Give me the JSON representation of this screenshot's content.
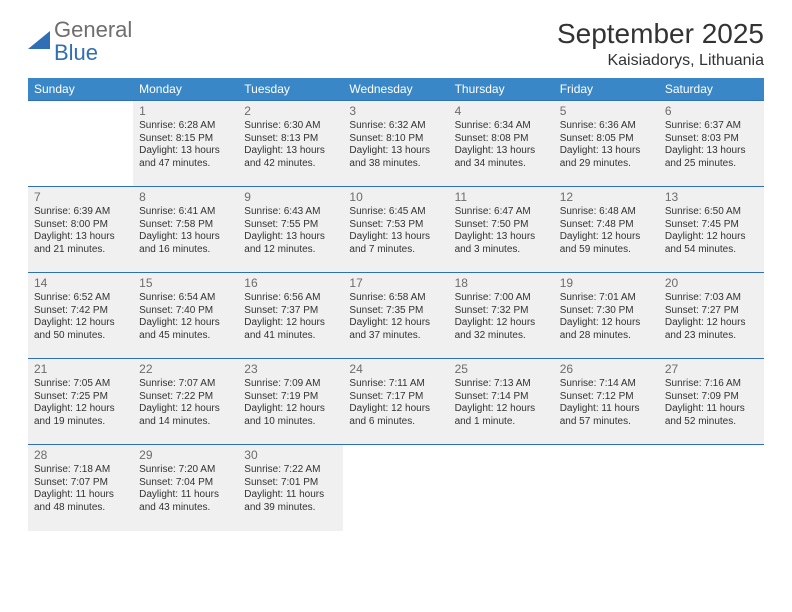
{
  "brand": {
    "line1": "General",
    "line2": "Blue"
  },
  "title": "September 2025",
  "location": "Kaisiadorys, Lithuania",
  "colors": {
    "header_bg": "#3a87c7",
    "header_text": "#ffffff",
    "border": "#2f6fb3",
    "shade_bg": "#f0f0f0",
    "text": "#333333",
    "daynum": "#6c6c6c",
    "brand_gray": "#6e6e6e",
    "brand_blue": "#2f6fb3"
  },
  "weekdays": [
    "Sunday",
    "Monday",
    "Tuesday",
    "Wednesday",
    "Thursday",
    "Friday",
    "Saturday"
  ],
  "weeks": [
    [
      null,
      {
        "n": "1",
        "sr": "Sunrise: 6:28 AM",
        "ss": "Sunset: 8:15 PM",
        "d1": "Daylight: 13 hours",
        "d2": "and 47 minutes."
      },
      {
        "n": "2",
        "sr": "Sunrise: 6:30 AM",
        "ss": "Sunset: 8:13 PM",
        "d1": "Daylight: 13 hours",
        "d2": "and 42 minutes."
      },
      {
        "n": "3",
        "sr": "Sunrise: 6:32 AM",
        "ss": "Sunset: 8:10 PM",
        "d1": "Daylight: 13 hours",
        "d2": "and 38 minutes."
      },
      {
        "n": "4",
        "sr": "Sunrise: 6:34 AM",
        "ss": "Sunset: 8:08 PM",
        "d1": "Daylight: 13 hours",
        "d2": "and 34 minutes."
      },
      {
        "n": "5",
        "sr": "Sunrise: 6:36 AM",
        "ss": "Sunset: 8:05 PM",
        "d1": "Daylight: 13 hours",
        "d2": "and 29 minutes."
      },
      {
        "n": "6",
        "sr": "Sunrise: 6:37 AM",
        "ss": "Sunset: 8:03 PM",
        "d1": "Daylight: 13 hours",
        "d2": "and 25 minutes."
      }
    ],
    [
      {
        "n": "7",
        "sr": "Sunrise: 6:39 AM",
        "ss": "Sunset: 8:00 PM",
        "d1": "Daylight: 13 hours",
        "d2": "and 21 minutes."
      },
      {
        "n": "8",
        "sr": "Sunrise: 6:41 AM",
        "ss": "Sunset: 7:58 PM",
        "d1": "Daylight: 13 hours",
        "d2": "and 16 minutes."
      },
      {
        "n": "9",
        "sr": "Sunrise: 6:43 AM",
        "ss": "Sunset: 7:55 PM",
        "d1": "Daylight: 13 hours",
        "d2": "and 12 minutes."
      },
      {
        "n": "10",
        "sr": "Sunrise: 6:45 AM",
        "ss": "Sunset: 7:53 PM",
        "d1": "Daylight: 13 hours",
        "d2": "and 7 minutes."
      },
      {
        "n": "11",
        "sr": "Sunrise: 6:47 AM",
        "ss": "Sunset: 7:50 PM",
        "d1": "Daylight: 13 hours",
        "d2": "and 3 minutes."
      },
      {
        "n": "12",
        "sr": "Sunrise: 6:48 AM",
        "ss": "Sunset: 7:48 PM",
        "d1": "Daylight: 12 hours",
        "d2": "and 59 minutes."
      },
      {
        "n": "13",
        "sr": "Sunrise: 6:50 AM",
        "ss": "Sunset: 7:45 PM",
        "d1": "Daylight: 12 hours",
        "d2": "and 54 minutes."
      }
    ],
    [
      {
        "n": "14",
        "sr": "Sunrise: 6:52 AM",
        "ss": "Sunset: 7:42 PM",
        "d1": "Daylight: 12 hours",
        "d2": "and 50 minutes."
      },
      {
        "n": "15",
        "sr": "Sunrise: 6:54 AM",
        "ss": "Sunset: 7:40 PM",
        "d1": "Daylight: 12 hours",
        "d2": "and 45 minutes."
      },
      {
        "n": "16",
        "sr": "Sunrise: 6:56 AM",
        "ss": "Sunset: 7:37 PM",
        "d1": "Daylight: 12 hours",
        "d2": "and 41 minutes."
      },
      {
        "n": "17",
        "sr": "Sunrise: 6:58 AM",
        "ss": "Sunset: 7:35 PM",
        "d1": "Daylight: 12 hours",
        "d2": "and 37 minutes."
      },
      {
        "n": "18",
        "sr": "Sunrise: 7:00 AM",
        "ss": "Sunset: 7:32 PM",
        "d1": "Daylight: 12 hours",
        "d2": "and 32 minutes."
      },
      {
        "n": "19",
        "sr": "Sunrise: 7:01 AM",
        "ss": "Sunset: 7:30 PM",
        "d1": "Daylight: 12 hours",
        "d2": "and 28 minutes."
      },
      {
        "n": "20",
        "sr": "Sunrise: 7:03 AM",
        "ss": "Sunset: 7:27 PM",
        "d1": "Daylight: 12 hours",
        "d2": "and 23 minutes."
      }
    ],
    [
      {
        "n": "21",
        "sr": "Sunrise: 7:05 AM",
        "ss": "Sunset: 7:25 PM",
        "d1": "Daylight: 12 hours",
        "d2": "and 19 minutes."
      },
      {
        "n": "22",
        "sr": "Sunrise: 7:07 AM",
        "ss": "Sunset: 7:22 PM",
        "d1": "Daylight: 12 hours",
        "d2": "and 14 minutes."
      },
      {
        "n": "23",
        "sr": "Sunrise: 7:09 AM",
        "ss": "Sunset: 7:19 PM",
        "d1": "Daylight: 12 hours",
        "d2": "and 10 minutes."
      },
      {
        "n": "24",
        "sr": "Sunrise: 7:11 AM",
        "ss": "Sunset: 7:17 PM",
        "d1": "Daylight: 12 hours",
        "d2": "and 6 minutes."
      },
      {
        "n": "25",
        "sr": "Sunrise: 7:13 AM",
        "ss": "Sunset: 7:14 PM",
        "d1": "Daylight: 12 hours",
        "d2": "and 1 minute."
      },
      {
        "n": "26",
        "sr": "Sunrise: 7:14 AM",
        "ss": "Sunset: 7:12 PM",
        "d1": "Daylight: 11 hours",
        "d2": "and 57 minutes."
      },
      {
        "n": "27",
        "sr": "Sunrise: 7:16 AM",
        "ss": "Sunset: 7:09 PM",
        "d1": "Daylight: 11 hours",
        "d2": "and 52 minutes."
      }
    ],
    [
      {
        "n": "28",
        "sr": "Sunrise: 7:18 AM",
        "ss": "Sunset: 7:07 PM",
        "d1": "Daylight: 11 hours",
        "d2": "and 48 minutes."
      },
      {
        "n": "29",
        "sr": "Sunrise: 7:20 AM",
        "ss": "Sunset: 7:04 PM",
        "d1": "Daylight: 11 hours",
        "d2": "and 43 minutes."
      },
      {
        "n": "30",
        "sr": "Sunrise: 7:22 AM",
        "ss": "Sunset: 7:01 PM",
        "d1": "Daylight: 11 hours",
        "d2": "and 39 minutes."
      },
      null,
      null,
      null,
      null
    ]
  ]
}
